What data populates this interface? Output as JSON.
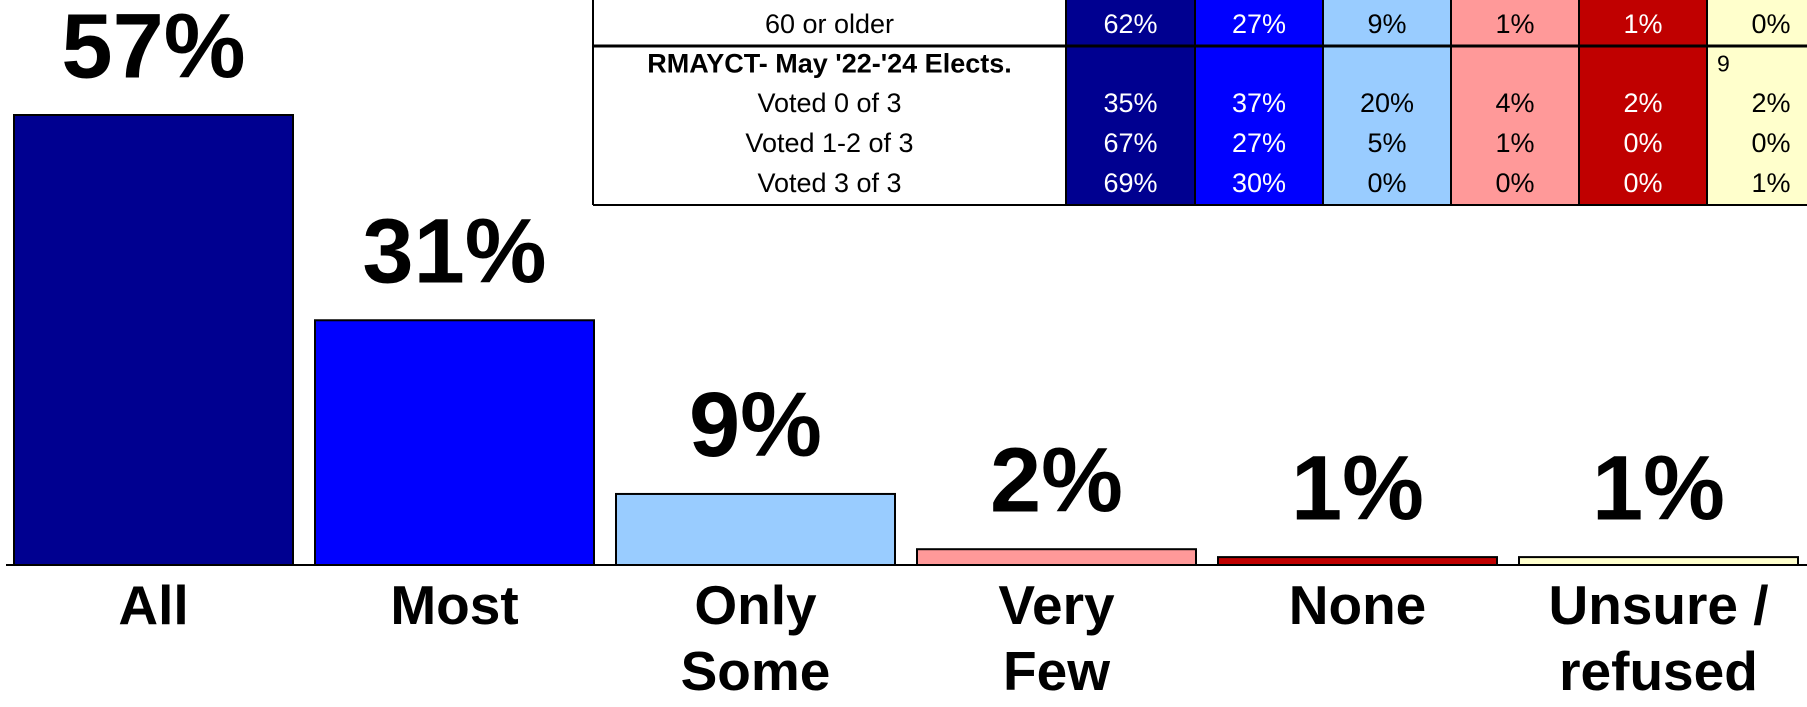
{
  "chart_data": {
    "type": "bar",
    "categories": [
      "All",
      "Most",
      "Only Some",
      "Very Few",
      "None",
      "Unsure / refused"
    ],
    "values": [
      57,
      31,
      9,
      2,
      1,
      1
    ],
    "value_labels": [
      "57%",
      "31%",
      "9%",
      "2%",
      "1%",
      "1%"
    ],
    "colors": [
      "#000090",
      "#0000ff",
      "#99ccff",
      "#ff9999",
      "#c00000",
      "#ffffcc"
    ]
  },
  "table": {
    "cell_colors": [
      "#000090",
      "#0000ff",
      "#99ccff",
      "#ff9999",
      "#c00000",
      "#ffffcc"
    ],
    "text_colors": [
      "#ffffff",
      "#ffffff",
      "#000000",
      "#000000",
      "#ffffff",
      "#000000"
    ],
    "rows": [
      {
        "label": "60 or older",
        "cells": [
          "62%",
          "27%",
          "9%",
          "1%",
          "1%",
          "0%"
        ]
      },
      {
        "label": "RMAYCT- May '22-'24 Elects.",
        "note": "9"
      },
      {
        "label": "Voted 0 of 3",
        "cells": [
          "35%",
          "37%",
          "20%",
          "4%",
          "2%",
          "2%"
        ]
      },
      {
        "label": "Voted 1-2 of 3",
        "cells": [
          "67%",
          "27%",
          "5%",
          "1%",
          "0%",
          "0%"
        ]
      },
      {
        "label": "Voted 3 of 3",
        "cells": [
          "69%",
          "30%",
          "0%",
          "0%",
          "0%",
          "1%"
        ]
      }
    ]
  }
}
